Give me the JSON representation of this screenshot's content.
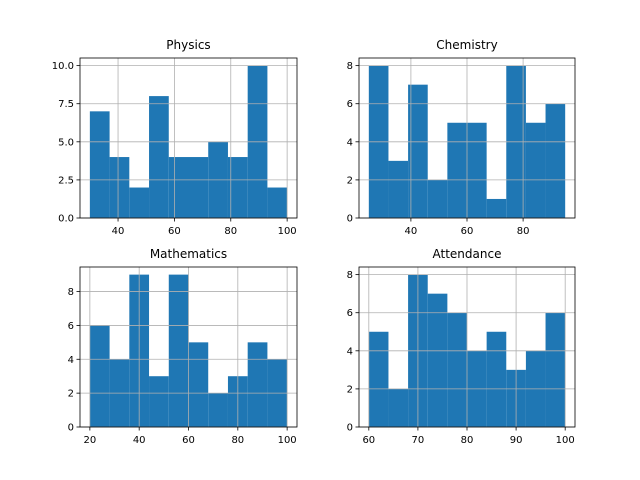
{
  "chart_data": [
    {
      "type": "bar",
      "title": "Physics",
      "bin_edges": [
        30,
        37,
        44,
        51,
        58,
        65,
        72,
        79,
        86,
        93,
        100
      ],
      "values": [
        7,
        4,
        2,
        8,
        4,
        4,
        5,
        4,
        10,
        2
      ],
      "xlim": [
        26.5,
        103.5
      ],
      "ylim": [
        0,
        10.5
      ],
      "xticks": [
        40,
        60,
        80,
        100
      ],
      "xtick_labels": [
        "40",
        "60",
        "80",
        "100"
      ],
      "yticks": [
        0,
        2.5,
        5,
        7.5,
        10
      ],
      "ytick_labels": [
        "0.0",
        "2.5",
        "5.0",
        "7.5",
        "10.0"
      ],
      "grid": true,
      "color": "#1f77b4"
    },
    {
      "type": "bar",
      "title": "Chemistry",
      "bin_edges": [
        25,
        32,
        39,
        46,
        53,
        60,
        67,
        74,
        81,
        88,
        95
      ],
      "values": [
        8,
        3,
        7,
        2,
        5,
        5,
        1,
        8,
        5,
        6
      ],
      "xlim": [
        21.5,
        98.5
      ],
      "ylim": [
        0,
        8.4
      ],
      "xticks": [
        40,
        60,
        80
      ],
      "xtick_labels": [
        "40",
        "60",
        "80"
      ],
      "yticks": [
        0,
        2,
        4,
        6,
        8
      ],
      "ytick_labels": [
        "0",
        "2",
        "4",
        "6",
        "8"
      ],
      "grid": true,
      "color": "#1f77b4"
    },
    {
      "type": "bar",
      "title": "Mathematics",
      "bin_edges": [
        20,
        28,
        36,
        44,
        52,
        60,
        68,
        76,
        84,
        92,
        100
      ],
      "values": [
        6,
        4,
        9,
        3,
        9,
        5,
        2,
        3,
        5,
        4
      ],
      "xlim": [
        16,
        104
      ],
      "ylim": [
        0,
        9.45
      ],
      "xticks": [
        20,
        40,
        60,
        80,
        100
      ],
      "xtick_labels": [
        "20",
        "40",
        "60",
        "80",
        "100"
      ],
      "yticks": [
        0,
        2,
        4,
        6,
        8
      ],
      "ytick_labels": [
        "0",
        "2",
        "4",
        "6",
        "8"
      ],
      "grid": true,
      "color": "#1f77b4"
    },
    {
      "type": "bar",
      "title": "Attendance",
      "bin_edges": [
        60,
        64,
        68,
        72,
        76,
        80,
        84,
        88,
        92,
        96,
        100
      ],
      "values": [
        5,
        2,
        8,
        7,
        6,
        4,
        5,
        3,
        4,
        6
      ],
      "xlim": [
        58,
        102
      ],
      "ylim": [
        0,
        8.4
      ],
      "xticks": [
        60,
        70,
        80,
        90,
        100
      ],
      "xtick_labels": [
        "60",
        "70",
        "80",
        "90",
        "100"
      ],
      "yticks": [
        0,
        2,
        4,
        6,
        8
      ],
      "ytick_labels": [
        "0",
        "2",
        "4",
        "6",
        "8"
      ],
      "grid": true,
      "color": "#1f77b4"
    }
  ]
}
